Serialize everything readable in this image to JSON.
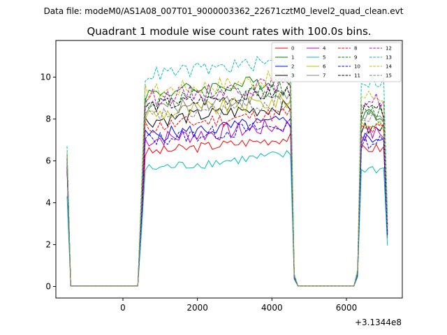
{
  "chart_data": {
    "type": "line",
    "suptitle": "Data file: modeM0/AS1A08_007T01_9000003362_22671cztM0_level2_quad_clean.evt",
    "title": "Quadrant 1 module wise count rates with 100.0s bins.",
    "xlabel": "",
    "ylabel": "",
    "offset_text": "+3.1344e8",
    "xlim": [
      -1800,
      7500
    ],
    "ylim": [
      -0.55,
      11.75
    ],
    "xticks": [
      0,
      2000,
      4000,
      6000
    ],
    "yticks": [
      0,
      2,
      4,
      6,
      8,
      10
    ],
    "grid": false,
    "legend_position": "top-right",
    "legend_columns": 4,
    "x_start": -1500,
    "x_step": 100,
    "series": [
      {
        "name": "0",
        "color": "#ff0000",
        "dash": "solid",
        "level": 6.4,
        "start": 5.7,
        "tail": 6.6,
        "spread": 0.25
      },
      {
        "name": "1",
        "color": "#008000",
        "dash": "solid",
        "level": 9.2,
        "start": 6.4,
        "tail": 8.2,
        "spread": 0.35
      },
      {
        "name": "2",
        "color": "#0000ff",
        "dash": "solid",
        "level": 7.2,
        "start": 5.6,
        "tail": 7.1,
        "spread": 0.35
      },
      {
        "name": "3",
        "color": "#000000",
        "dash": "solid",
        "level": 7.9,
        "start": 5.8,
        "tail": 7.5,
        "spread": 0.35
      },
      {
        "name": "4",
        "color": "#c000c0",
        "dash": "solid",
        "level": 7.0,
        "start": 5.9,
        "tail": 7.3,
        "spread": 0.4
      },
      {
        "name": "5",
        "color": "#00bfbf",
        "dash": "solid",
        "level": 5.6,
        "start": 4.3,
        "tail": 5.6,
        "spread": 0.25
      },
      {
        "name": "6",
        "color": "#bfbf00",
        "dash": "solid",
        "level": 8.2,
        "start": 6.0,
        "tail": 7.8,
        "spread": 0.4
      },
      {
        "name": "7",
        "color": "#808080",
        "dash": "solid",
        "level": 8.5,
        "start": 6.2,
        "tail": 8.0,
        "spread": 0.4
      },
      {
        "name": "8",
        "color": "#ff0000",
        "dash": "dashed",
        "level": 7.6,
        "start": 5.8,
        "tail": 7.5,
        "spread": 0.35
      },
      {
        "name": "9",
        "color": "#008000",
        "dash": "dashed",
        "level": 8.8,
        "start": 6.3,
        "tail": 8.3,
        "spread": 0.4
      },
      {
        "name": "10",
        "color": "#0000ff",
        "dash": "dashed",
        "level": 7.0,
        "start": 5.7,
        "tail": 6.9,
        "spread": 0.35
      },
      {
        "name": "11",
        "color": "#000000",
        "dash": "dashed",
        "level": 8.6,
        "start": 6.1,
        "tail": 8.4,
        "spread": 0.35
      },
      {
        "name": "12",
        "color": "#c000c0",
        "dash": "dashed",
        "level": 9.0,
        "start": 6.3,
        "tail": 8.9,
        "spread": 0.4
      },
      {
        "name": "13",
        "color": "#00bfbf",
        "dash": "dashed",
        "level": 10.1,
        "start": 6.7,
        "tail": 9.8,
        "spread": 0.35
      },
      {
        "name": "14",
        "color": "#bfbf00",
        "dash": "dashed",
        "level": 9.3,
        "start": 6.4,
        "tail": 9.1,
        "spread": 0.4
      },
      {
        "name": "15",
        "color": "#808080",
        "dash": "dashed",
        "level": 8.1,
        "start": 6.0,
        "tail": 7.9,
        "spread": 0.4
      }
    ]
  }
}
